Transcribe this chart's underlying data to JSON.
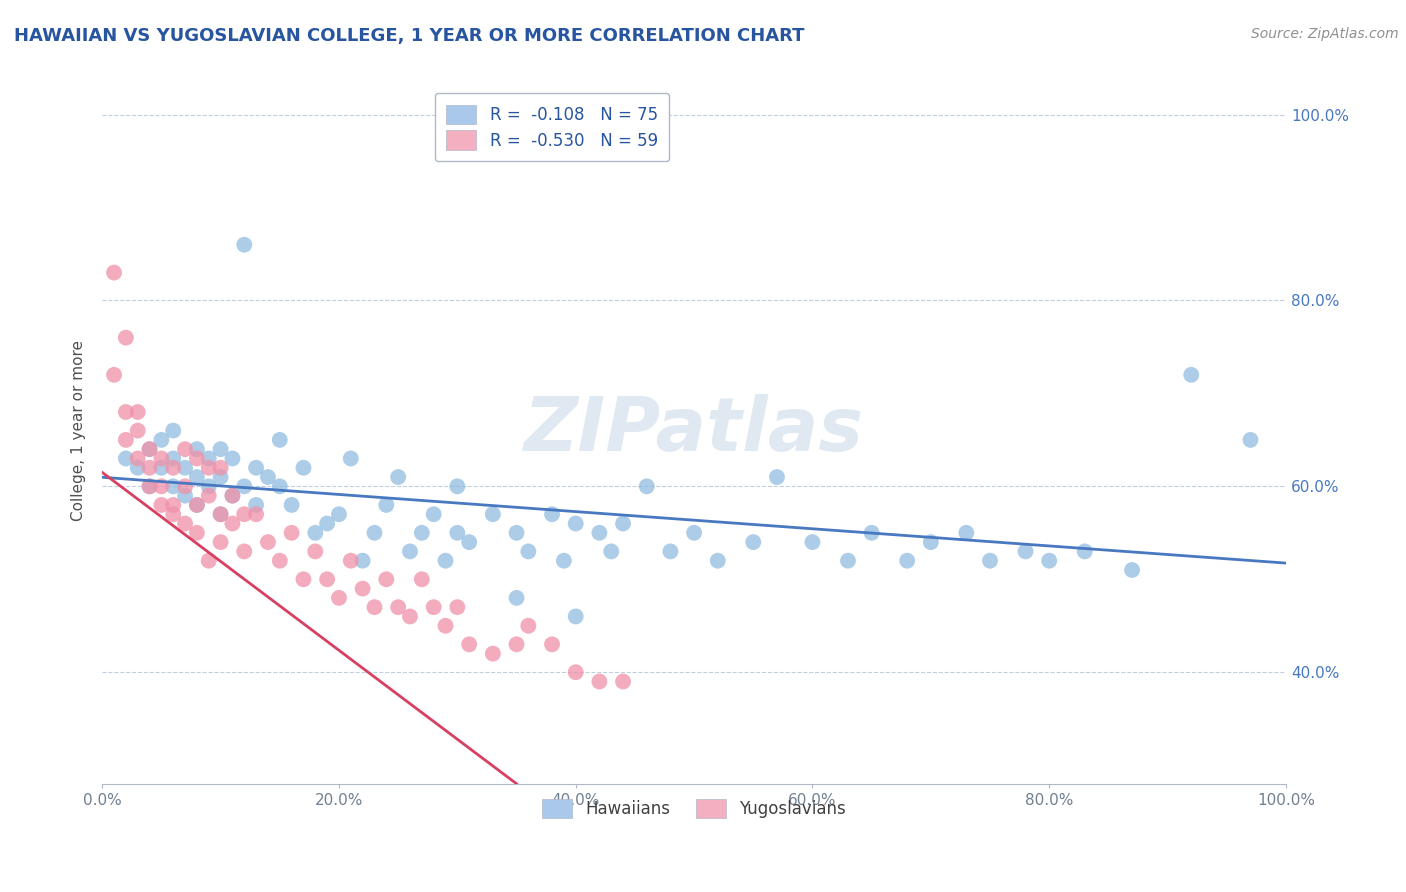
{
  "title": "HAWAIIAN VS YUGOSLAVIAN COLLEGE, 1 YEAR OR MORE CORRELATION CHART",
  "source_text": "Source: ZipAtlas.com",
  "ylabel": "College, 1 year or more",
  "xlim": [
    0.0,
    1.0
  ],
  "ylim": [
    0.28,
    1.04
  ],
  "x_ticks": [
    0.0,
    0.2,
    0.4,
    0.6,
    0.8,
    1.0
  ],
  "x_tick_labels": [
    "0.0%",
    "20.0%",
    "40.0%",
    "60.0%",
    "80.0%",
    "100.0%"
  ],
  "y_ticks": [
    0.4,
    0.6,
    0.8,
    1.0
  ],
  "y_tick_labels": [
    "40.0%",
    "60.0%",
    "80.0%",
    "100.0%"
  ],
  "legend_top": [
    {
      "label": "R =  -0.108   N = 75",
      "color": "#aac8ea"
    },
    {
      "label": "R =  -0.530   N = 59",
      "color": "#f4b0c0"
    }
  ],
  "legend_bottom": [
    {
      "label": "Hawaiians",
      "color": "#aac8ea"
    },
    {
      "label": "Yugoslavians",
      "color": "#f4b0c0"
    }
  ],
  "watermark": "ZIPatlas",
  "hawaiian_color": "#90bce0",
  "yugoslavian_color": "#f090a8",
  "hawaiian_line_color": "#4878c0",
  "yugoslavian_line_color": "#d84060",
  "grid_color": "#c0cfe0",
  "background_color": "#ffffff",
  "hawaiian_x": [
    0.02,
    0.03,
    0.04,
    0.04,
    0.05,
    0.05,
    0.06,
    0.06,
    0.06,
    0.07,
    0.07,
    0.08,
    0.08,
    0.08,
    0.09,
    0.09,
    0.1,
    0.1,
    0.1,
    0.11,
    0.11,
    0.12,
    0.12,
    0.13,
    0.13,
    0.14,
    0.15,
    0.15,
    0.16,
    0.17,
    0.18,
    0.19,
    0.2,
    0.21,
    0.22,
    0.23,
    0.24,
    0.25,
    0.26,
    0.27,
    0.28,
    0.29,
    0.3,
    0.31,
    0.33,
    0.35,
    0.36,
    0.38,
    0.39,
    0.4,
    0.42,
    0.43,
    0.44,
    0.46,
    0.48,
    0.5,
    0.52,
    0.55,
    0.57,
    0.6,
    0.63,
    0.65,
    0.68,
    0.7,
    0.73,
    0.75,
    0.78,
    0.8,
    0.83,
    0.87,
    0.92,
    0.97,
    0.3,
    0.35,
    0.4
  ],
  "hawaiian_y": [
    0.63,
    0.62,
    0.6,
    0.64,
    0.62,
    0.65,
    0.6,
    0.63,
    0.66,
    0.59,
    0.62,
    0.58,
    0.61,
    0.64,
    0.6,
    0.63,
    0.57,
    0.61,
    0.64,
    0.59,
    0.63,
    0.6,
    0.86,
    0.58,
    0.62,
    0.61,
    0.6,
    0.65,
    0.58,
    0.62,
    0.55,
    0.56,
    0.57,
    0.63,
    0.52,
    0.55,
    0.58,
    0.61,
    0.53,
    0.55,
    0.57,
    0.52,
    0.55,
    0.54,
    0.57,
    0.55,
    0.53,
    0.57,
    0.52,
    0.56,
    0.55,
    0.53,
    0.56,
    0.6,
    0.53,
    0.55,
    0.52,
    0.54,
    0.61,
    0.54,
    0.52,
    0.55,
    0.52,
    0.54,
    0.55,
    0.52,
    0.53,
    0.52,
    0.53,
    0.51,
    0.72,
    0.65,
    0.6,
    0.48,
    0.46
  ],
  "yugoslavian_x": [
    0.01,
    0.02,
    0.02,
    0.03,
    0.03,
    0.04,
    0.04,
    0.05,
    0.05,
    0.06,
    0.06,
    0.07,
    0.07,
    0.08,
    0.08,
    0.09,
    0.09,
    0.1,
    0.1,
    0.1,
    0.11,
    0.11,
    0.12,
    0.12,
    0.13,
    0.14,
    0.15,
    0.16,
    0.17,
    0.18,
    0.19,
    0.2,
    0.21,
    0.22,
    0.23,
    0.24,
    0.25,
    0.26,
    0.27,
    0.28,
    0.29,
    0.3,
    0.31,
    0.33,
    0.35,
    0.36,
    0.38,
    0.4,
    0.42,
    0.44,
    0.01,
    0.02,
    0.03,
    0.04,
    0.05,
    0.06,
    0.07,
    0.08,
    0.09
  ],
  "yugoslavian_y": [
    0.83,
    0.76,
    0.65,
    0.68,
    0.63,
    0.64,
    0.6,
    0.63,
    0.58,
    0.62,
    0.57,
    0.64,
    0.6,
    0.63,
    0.58,
    0.62,
    0.59,
    0.57,
    0.54,
    0.62,
    0.59,
    0.56,
    0.57,
    0.53,
    0.57,
    0.54,
    0.52,
    0.55,
    0.5,
    0.53,
    0.5,
    0.48,
    0.52,
    0.49,
    0.47,
    0.5,
    0.47,
    0.46,
    0.5,
    0.47,
    0.45,
    0.47,
    0.43,
    0.42,
    0.43,
    0.45,
    0.43,
    0.4,
    0.39,
    0.39,
    0.72,
    0.68,
    0.66,
    0.62,
    0.6,
    0.58,
    0.56,
    0.55,
    0.52
  ]
}
